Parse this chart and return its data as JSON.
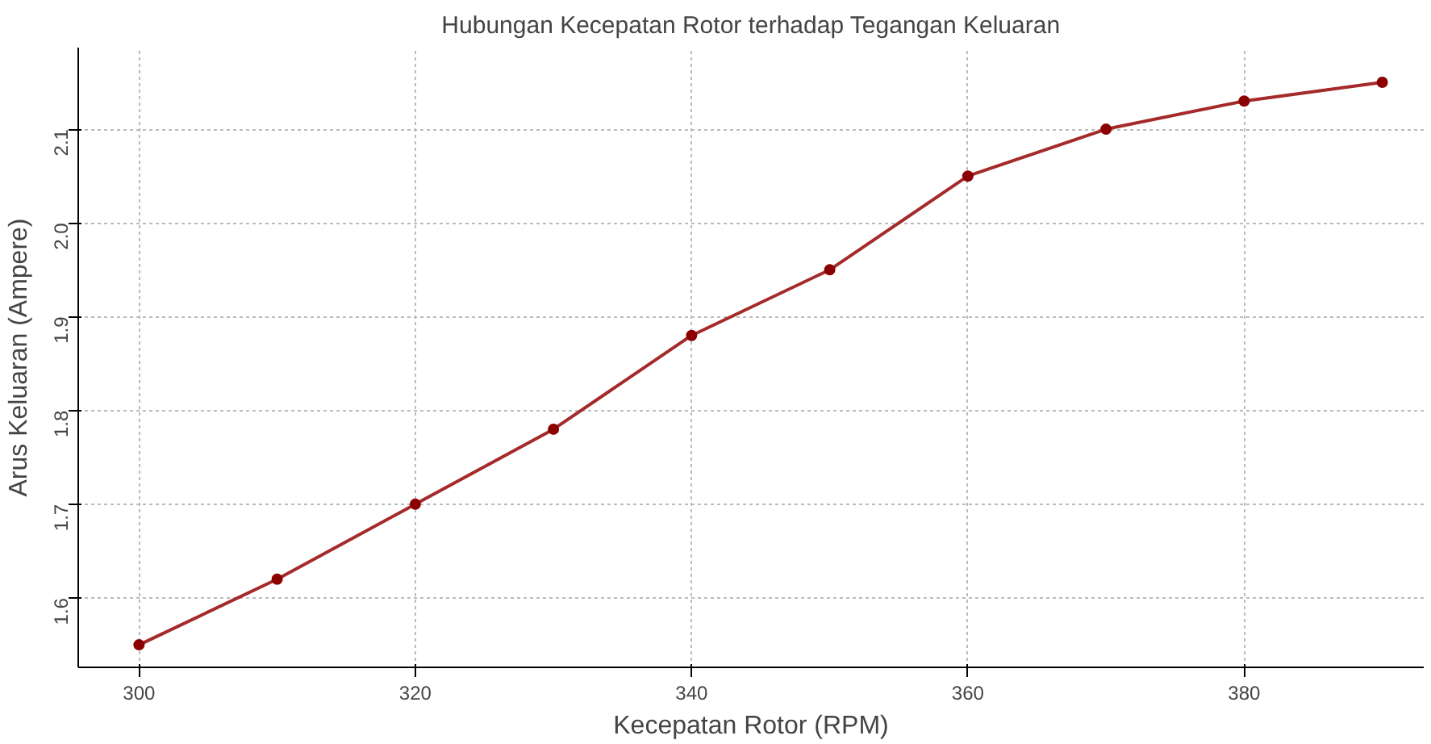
{
  "chart_data": {
    "type": "line",
    "title": "Hubungan Kecepatan Rotor terhadap Tegangan Keluaran",
    "xlabel": "Kecepatan Rotor (RPM)",
    "ylabel": "Arus Keluaran (Ampere)",
    "x": [
      300,
      310,
      320,
      330,
      340,
      350,
      360,
      370,
      380,
      390
    ],
    "series": [
      {
        "color": "#a52a2a",
        "values": [
          1.55,
          1.62,
          1.7,
          1.78,
          1.88,
          1.95,
          2.05,
          2.1,
          2.13,
          2.15
        ]
      }
    ],
    "xlim": [
      295.6,
      393
    ],
    "ylim": [
      1.526,
      2.187
    ],
    "xticks": [
      300,
      320,
      340,
      360,
      380
    ],
    "yticks": [
      1.6,
      1.7,
      1.8,
      1.9,
      {
        "value": 2,
        "label": "2.0"
      },
      2.1
    ],
    "grid": true,
    "marker": "circle",
    "line_style": "solid"
  }
}
